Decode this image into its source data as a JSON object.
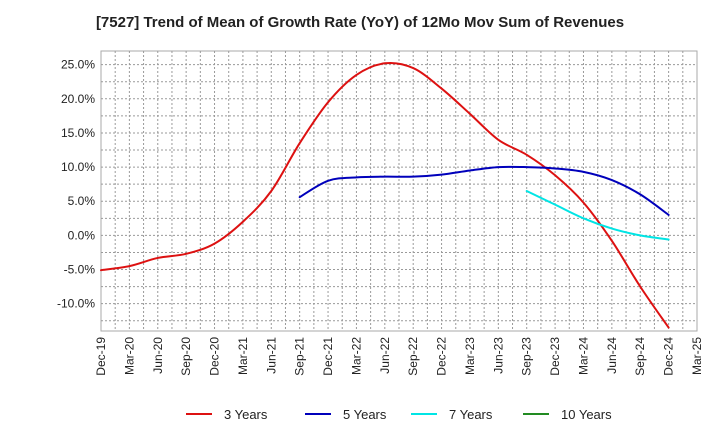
{
  "chart_data": {
    "type": "line",
    "title": "[7527]  Trend of Mean of Growth Rate (YoY) of 12Mo Mov Sum of Revenues",
    "xlabel": "",
    "ylabel": "",
    "ylim": [
      -14,
      27
    ],
    "y_ticks": [
      25,
      20,
      15,
      10,
      5,
      0,
      -5,
      -10
    ],
    "y_tick_labels": [
      "25.0%",
      "20.0%",
      "15.0%",
      "10.0%",
      "5.0%",
      "0.0%",
      "-5.0%",
      "-10.0%"
    ],
    "x_tick_labels": [
      "Dec-19",
      "Mar-20",
      "Jun-20",
      "Sep-20",
      "Dec-20",
      "Mar-21",
      "Jun-21",
      "Sep-21",
      "Dec-21",
      "Mar-22",
      "Jun-22",
      "Sep-22",
      "Dec-22",
      "Mar-23",
      "Jun-23",
      "Sep-23",
      "Dec-23",
      "Mar-24",
      "Jun-24",
      "Sep-24",
      "Dec-24",
      "Mar-25"
    ],
    "grid": true,
    "legend_position": "bottom",
    "series": [
      {
        "name": "3 Years",
        "color": "#dd1111",
        "points": [
          [
            0,
            -5.1
          ],
          [
            1,
            -4.5
          ],
          [
            2,
            -3.3
          ],
          [
            3,
            -2.7
          ],
          [
            4,
            -1.2
          ],
          [
            5,
            2.0
          ],
          [
            6,
            6.5
          ],
          [
            7,
            13.5
          ],
          [
            8,
            19.5
          ],
          [
            9,
            23.5
          ],
          [
            10,
            25.2
          ],
          [
            11,
            24.5
          ],
          [
            12,
            21.5
          ],
          [
            13,
            17.8
          ],
          [
            14,
            14.0
          ],
          [
            15,
            11.8
          ],
          [
            16,
            8.8
          ],
          [
            17,
            4.8
          ],
          [
            18,
            -0.8
          ],
          [
            19,
            -7.5
          ],
          [
            20,
            -13.5
          ]
        ]
      },
      {
        "name": "5 Years",
        "color": "#0000bb",
        "points": [
          [
            7,
            5.6
          ],
          [
            8,
            8.0
          ],
          [
            9,
            8.5
          ],
          [
            10,
            8.6
          ],
          [
            11,
            8.6
          ],
          [
            12,
            8.9
          ],
          [
            13,
            9.5
          ],
          [
            14,
            10.0
          ],
          [
            15,
            10.0
          ],
          [
            16,
            9.8
          ],
          [
            17,
            9.3
          ],
          [
            18,
            8.1
          ],
          [
            19,
            6.0
          ],
          [
            20,
            3.0
          ]
        ]
      },
      {
        "name": "7 Years",
        "color": "#00e5e5",
        "points": [
          [
            15,
            6.5
          ],
          [
            16,
            4.5
          ],
          [
            17,
            2.5
          ],
          [
            18,
            1.0
          ],
          [
            19,
            0.0
          ],
          [
            20,
            -0.6
          ]
        ]
      },
      {
        "name": "10 Years",
        "color": "#228b22",
        "points": []
      }
    ]
  }
}
